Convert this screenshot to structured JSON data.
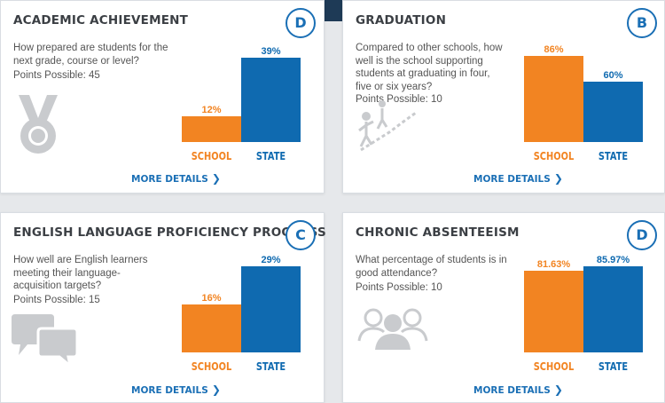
{
  "colors": {
    "school": "#f28422",
    "state": "#0f6ab0",
    "link": "#1a6fb5",
    "grade_ring": "#1a6fb5",
    "icon_gray": "#c9cbce"
  },
  "cards": [
    {
      "title": "ACADEMIC ACHIEVEMENT",
      "grade": "D",
      "question": "How prepared are students for the next grade, course or level?",
      "points": "Points Possible: 45",
      "icon": "medal-icon",
      "more": "MORE DETAILS",
      "chart_data": {
        "type": "bar",
        "categories": [
          "SCHOOL",
          "STATE"
        ],
        "values": [
          12,
          39
        ],
        "value_labels": [
          "12%",
          "39%"
        ],
        "ylim": [
          0,
          40
        ]
      }
    },
    {
      "title": "GRADUATION",
      "grade": "B",
      "question": "Compared to other schools, how well is the school supporting students at graduating in four, five or six years?",
      "points": "Points Possible: 10",
      "icon": "graduation-climb-icon",
      "more": "MORE DETAILS",
      "chart_data": {
        "type": "bar",
        "categories": [
          "SCHOOL",
          "STATE"
        ],
        "values": [
          86,
          60
        ],
        "value_labels": [
          "86%",
          "60%"
        ],
        "ylim": [
          0,
          86
        ]
      }
    },
    {
      "title": "ENGLISH LANGUAGE PROFICIENCY PROGRESS",
      "grade": "C",
      "question": "How well are English learners meeting their language-acquisition targets?",
      "points": "Points Possible: 15",
      "icon": "speech-bubbles-icon",
      "more": "MORE DETAILS",
      "chart_data": {
        "type": "bar",
        "categories": [
          "SCHOOL",
          "STATE"
        ],
        "values": [
          16,
          29
        ],
        "value_labels": [
          "16%",
          "29%"
        ],
        "ylim": [
          0,
          29
        ]
      }
    },
    {
      "title": "CHRONIC ABSENTEEISM",
      "grade": "D",
      "question": "What percentage of students is in good attendance?",
      "points": "Points Possible: 10",
      "icon": "people-group-icon",
      "more": "MORE DETAILS",
      "chart_data": {
        "type": "bar",
        "categories": [
          "SCHOOL",
          "STATE"
        ],
        "values": [
          81.63,
          85.97
        ],
        "value_labels": [
          "81.63%",
          "85.97%"
        ],
        "ylim": [
          0,
          85.97
        ]
      }
    }
  ]
}
